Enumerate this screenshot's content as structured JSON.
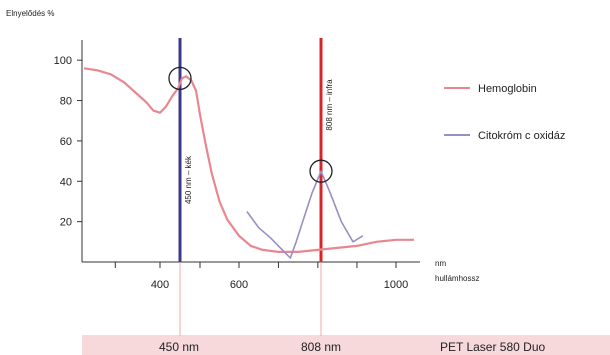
{
  "chart_data": {
    "type": "line",
    "title": "",
    "ylabel": "Elnyelődés %",
    "xlabel_lines": [
      "nm",
      "hullámhossz"
    ],
    "xlim": [
      230,
      1050
    ],
    "ylim": [
      0,
      110
    ],
    "x_ticks": [
      400,
      600,
      1000
    ],
    "y_ticks": [
      20,
      40,
      60,
      80,
      100
    ],
    "grid": false,
    "legend_position": "right",
    "series": [
      {
        "name": "Hemoglobin",
        "color": "#e8878f",
        "x": [
          230,
          260,
          290,
          320,
          350,
          370,
          385,
          400,
          415,
          430,
          445,
          455,
          465,
          478,
          490,
          500,
          515,
          530,
          550,
          570,
          600,
          630,
          660,
          700,
          750,
          800,
          850,
          900,
          950,
          1000,
          1050
        ],
        "y": [
          96,
          95,
          93,
          89,
          83,
          79,
          75,
          74,
          77,
          82,
          86,
          91,
          92,
          90,
          85,
          73,
          58,
          44,
          30,
          21,
          13,
          8,
          6,
          5,
          5,
          6,
          7,
          8,
          10,
          11,
          11
        ]
      },
      {
        "name": "Citokróm c oxidáz",
        "color": "#9a8ec4",
        "x": [
          620,
          650,
          680,
          700,
          715,
          730,
          745,
          765,
          785,
          808,
          830,
          860,
          890,
          915
        ],
        "y": [
          25,
          17,
          12,
          8,
          5,
          2,
          10,
          22,
          34,
          45,
          35,
          20,
          10,
          13
        ]
      }
    ],
    "markers": [
      {
        "x": 450,
        "label": "450 nm – kék",
        "color": "#3a3a8c"
      },
      {
        "x": 808,
        "label": "808 nm – infra",
        "color": "#d6262a"
      }
    ],
    "highlight_circles": [
      {
        "x": 450,
        "y": 91
      },
      {
        "x": 808,
        "y": 45
      }
    ]
  },
  "footer": {
    "label_450": "450 nm",
    "label_808": "808 nm",
    "product": "PET Laser 580 Duo"
  },
  "colors": {
    "band": "#f7d9dc",
    "axis": "#333333"
  }
}
